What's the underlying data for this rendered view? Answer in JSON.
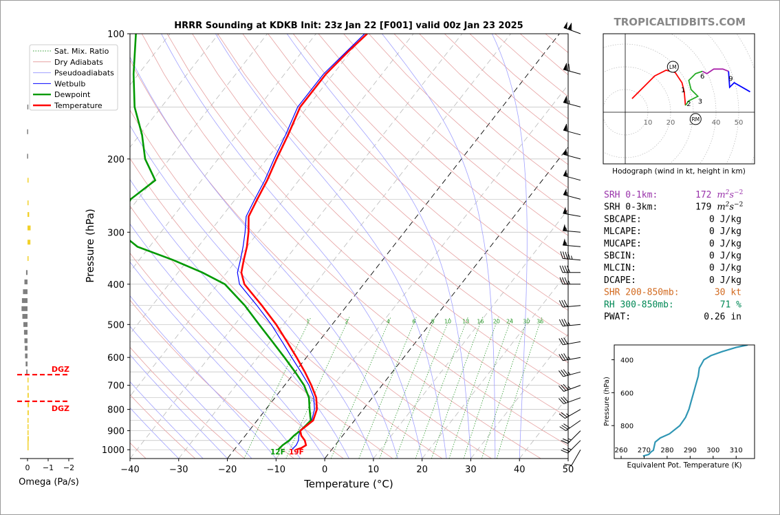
{
  "header": {
    "title": "HRRR Sounding at KDKB Init: 23z Jan 22 [F001] valid 00z Jan 23 2025",
    "brand": "TROPICALTIDBITS.COM"
  },
  "legend": {
    "items": [
      {
        "label": "Sat. Mix. Ratio",
        "color": "#2e9a2e",
        "style": "dotted"
      },
      {
        "label": "Dry Adiabats",
        "color": "#e6a0a0",
        "style": "solid"
      },
      {
        "label": "Pseudoadiabats",
        "color": "#a0a0ff",
        "style": "solid"
      },
      {
        "label": "Wetbulb",
        "color": "#0000ff",
        "style": "solid"
      },
      {
        "label": "Dewpoint",
        "color": "#009900",
        "style": "solid"
      },
      {
        "label": "Temperature",
        "color": "#ff0000",
        "style": "solid"
      }
    ]
  },
  "chart_data": [
    {
      "type": "line",
      "name": "skew-t",
      "xlabel": "Temperature (°C)",
      "ylabel": "Pressure (hPa)",
      "xlim": [
        -40,
        50
      ],
      "ylim": [
        1050,
        100
      ],
      "yscale": "log",
      "xticks": [
        -40,
        -30,
        -20,
        -10,
        0,
        10,
        20,
        30,
        40,
        50
      ],
      "yticks": [
        100,
        200,
        300,
        400,
        500,
        600,
        700,
        800,
        900,
        1000
      ],
      "mixing_ratio_labels": [
        "1",
        "2",
        "4",
        "6",
        "8",
        "10",
        "13",
        "16",
        "20",
        "24",
        "30",
        "36"
      ],
      "surface_labels": {
        "dewpoint": "12F",
        "temperature": "19F"
      },
      "temperature": {
        "p": [
          1000,
          990,
          975,
          950,
          925,
          900,
          875,
          850,
          800,
          750,
          700,
          650,
          600,
          550,
          500,
          450,
          400,
          375,
          350,
          325,
          300,
          275,
          250,
          225,
          200,
          175,
          150,
          125,
          110,
          100
        ],
        "t": [
          -7.3,
          -6.5,
          -6.0,
          -7.0,
          -8.5,
          -9.5,
          -9.0,
          -8.5,
          -9.5,
          -11.5,
          -14.5,
          -18.0,
          -22.0,
          -26.5,
          -31.5,
          -37.5,
          -44.5,
          -47.0,
          -48.5,
          -50.0,
          -52.0,
          -54.5,
          -55.5,
          -56.5,
          -58.0,
          -59.5,
          -61.5,
          -61.5,
          -60.5,
          -59.5
        ]
      },
      "dewpoint": {
        "p": [
          1000,
          975,
          950,
          925,
          900,
          875,
          850,
          800,
          750,
          700,
          650,
          600,
          550,
          500,
          450,
          400,
          375,
          350,
          325,
          300,
          275,
          250,
          225,
          200,
          175,
          150,
          125,
          100
        ],
        "td": [
          -11.0,
          -10.8,
          -10.2,
          -10.0,
          -9.5,
          -9.2,
          -9.0,
          -11.0,
          -13.0,
          -16.0,
          -20.0,
          -24.5,
          -29.5,
          -35.0,
          -41.0,
          -48.5,
          -55.0,
          -63.0,
          -72.5,
          -78.5,
          -80.5,
          -81.5,
          -79.5,
          -85.0,
          -89.5,
          -95.5,
          -101.0,
          -107.0
        ]
      },
      "wetbulb": {
        "p": [
          1000,
          975,
          950,
          925,
          900,
          875,
          850,
          800,
          750,
          700,
          650,
          600,
          550,
          500,
          450,
          400,
          375,
          350,
          325,
          300,
          275,
          250,
          225,
          200,
          175,
          150,
          125,
          100
        ],
        "tw": [
          -8.2,
          -8.0,
          -8.3,
          -9.0,
          -9.5,
          -9.1,
          -8.8,
          -10.0,
          -12.0,
          -15.0,
          -18.8,
          -23.0,
          -27.5,
          -32.5,
          -38.5,
          -45.5,
          -47.8,
          -49.2,
          -50.8,
          -52.7,
          -55.0,
          -56.0,
          -57.0,
          -58.5,
          -60.0,
          -62.0,
          -62.0,
          -60.0
        ]
      }
    },
    {
      "type": "scatter",
      "name": "hodograph",
      "xlabel": "Hodograph (wind in kt, height in km)",
      "ring_labels": [
        "10",
        "20",
        "30",
        "40",
        "50"
      ],
      "points": [
        {
          "u": 3,
          "v": 6,
          "seg": "0-3"
        },
        {
          "u": 8,
          "v": 11,
          "seg": "0-3"
        },
        {
          "u": 13,
          "v": 16,
          "seg": "0-3"
        },
        {
          "u": 18,
          "v": 18.5,
          "seg": "0-3"
        },
        {
          "u": 22,
          "v": 17.5,
          "seg": "0-3"
        },
        {
          "u": 25,
          "v": 13,
          "seg": "0-3"
        },
        {
          "u": 26,
          "v": 9,
          "seg": "0-3"
        },
        {
          "u": 26.5,
          "v": 3,
          "seg": "0-3"
        },
        {
          "u": 28,
          "v": 5,
          "seg": "3-6"
        },
        {
          "u": 32,
          "v": 7,
          "seg": "3-6"
        },
        {
          "u": 29,
          "v": 10,
          "seg": "3-6"
        },
        {
          "u": 28,
          "v": 14,
          "seg": "3-6"
        },
        {
          "u": 31,
          "v": 17,
          "seg": "3-6"
        },
        {
          "u": 34,
          "v": 18,
          "seg": "3-6"
        },
        {
          "u": 36,
          "v": 17,
          "seg": "6-9"
        },
        {
          "u": 39,
          "v": 19,
          "seg": "6-9"
        },
        {
          "u": 43,
          "v": 19,
          "seg": "6-9"
        },
        {
          "u": 45.5,
          "v": 18,
          "seg": "6-9"
        },
        {
          "u": 46,
          "v": 11,
          "seg": "9-12"
        },
        {
          "u": 48,
          "v": 13,
          "seg": "9-12"
        },
        {
          "u": 55,
          "v": 9,
          "seg": "9-12"
        }
      ],
      "seg_colors": {
        "0-3": "#ff0000",
        "3-6": "#22aa22",
        "6-9": "#aa22aa",
        "9-12": "#0000ff"
      },
      "height_labels": [
        {
          "text": "1",
          "u": 25.5,
          "v": 10
        },
        {
          "text": "2",
          "u": 28,
          "v": 4
        },
        {
          "text": "3",
          "u": 33,
          "v": 5
        },
        {
          "text": "6",
          "u": 34,
          "v": 16
        },
        {
          "text": "9",
          "u": 46.5,
          "v": 15
        }
      ],
      "storm_motion": [
        {
          "label": "LM",
          "u": 21,
          "v": 20
        },
        {
          "label": "RM",
          "u": 31,
          "v": -3
        }
      ]
    },
    {
      "type": "line",
      "name": "theta-e",
      "ylabel": "Pressure (hPa)",
      "xlabel": "Equivalent Pot. Temperature (K)",
      "xlim": [
        257,
        318
      ],
      "ylim": [
        1000,
        310
      ],
      "xticks": [
        "260",
        "270",
        "280",
        "290",
        "300",
        "310"
      ],
      "yticks": [
        "400",
        "600",
        "800"
      ],
      "theta_e": {
        "p": [
          985,
          975,
          960,
          950,
          900,
          875,
          850,
          800,
          750,
          700,
          650,
          600,
          550,
          500,
          450,
          425,
          400,
          375,
          350,
          325,
          310
        ],
        "k": [
          269.5,
          272.0,
          273.0,
          274.0,
          274.8,
          277.0,
          281.0,
          285.5,
          288.0,
          289.5,
          290.5,
          291.5,
          292.5,
          293.5,
          294.0,
          295.0,
          296.0,
          299.0,
          304.0,
          310.0,
          315.0
        ]
      }
    },
    {
      "type": "bar",
      "name": "omega",
      "xlabel": "Omega (Pa/s)",
      "xticks": [
        "0",
        "−1",
        "−2"
      ],
      "xlim": [
        0.3,
        -2.0
      ],
      "levels": [
        {
          "p": 150,
          "omega": 0.01
        },
        {
          "p": 172,
          "omega": 0.02
        },
        {
          "p": 197,
          "omega": 0.02
        },
        {
          "p": 225,
          "omega": -0.02
        },
        {
          "p": 255,
          "omega": -0.05
        },
        {
          "p": 272,
          "omega": -0.08
        },
        {
          "p": 293,
          "omega": -0.15
        },
        {
          "p": 317,
          "omega": -0.14
        },
        {
          "p": 347,
          "omega": -0.04
        },
        {
          "p": 375,
          "omega": 0.07
        },
        {
          "p": 395,
          "omega": 0.15
        },
        {
          "p": 417,
          "omega": 0.22
        },
        {
          "p": 438,
          "omega": 0.27
        },
        {
          "p": 458,
          "omega": 0.29
        },
        {
          "p": 478,
          "omega": 0.25
        },
        {
          "p": 500,
          "omega": 0.2
        },
        {
          "p": 522,
          "omega": 0.17
        },
        {
          "p": 547,
          "omega": 0.15
        },
        {
          "p": 570,
          "omega": 0.13
        },
        {
          "p": 595,
          "omega": 0.12
        },
        {
          "p": 622,
          "omega": 0.09
        },
        {
          "p": 650,
          "omega": 0.06
        },
        {
          "p": 680,
          "omega": -0.02
        },
        {
          "p": 710,
          "omega": -0.04
        },
        {
          "p": 740,
          "omega": -0.06
        },
        {
          "p": 780,
          "omega": -0.07
        },
        {
          "p": 815,
          "omega": -0.06
        },
        {
          "p": 850,
          "omega": -0.05
        },
        {
          "p": 880,
          "omega": -0.05
        },
        {
          "p": 910,
          "omega": -0.04
        },
        {
          "p": 940,
          "omega": -0.06
        },
        {
          "p": 965,
          "omega": -0.05
        },
        {
          "p": 990,
          "omega": -0.03
        }
      ],
      "dgz": [
        {
          "label": "DGZ",
          "p": 660
        },
        {
          "label": "DGZ",
          "p": 765
        }
      ]
    }
  ],
  "winds": [
    {
      "p": 100,
      "spd": 110,
      "dir": 290
    },
    {
      "p": 125,
      "spd": 70,
      "dir": 285
    },
    {
      "p": 150,
      "spd": 65,
      "dir": 285
    },
    {
      "p": 175,
      "spd": 60,
      "dir": 285
    },
    {
      "p": 200,
      "spd": 55,
      "dir": 285
    },
    {
      "p": 225,
      "spd": 55,
      "dir": 285
    },
    {
      "p": 250,
      "spd": 55,
      "dir": 285
    },
    {
      "p": 275,
      "spd": 55,
      "dir": 280
    },
    {
      "p": 300,
      "spd": 55,
      "dir": 275
    },
    {
      "p": 325,
      "spd": 55,
      "dir": 275
    },
    {
      "p": 350,
      "spd": 45,
      "dir": 275
    },
    {
      "p": 375,
      "spd": 40,
      "dir": 270
    },
    {
      "p": 400,
      "spd": 35,
      "dir": 270
    },
    {
      "p": 450,
      "spd": 30,
      "dir": 265
    },
    {
      "p": 500,
      "spd": 35,
      "dir": 265
    },
    {
      "p": 550,
      "spd": 30,
      "dir": 260
    },
    {
      "p": 600,
      "spd": 35,
      "dir": 260
    },
    {
      "p": 650,
      "spd": 35,
      "dir": 255
    },
    {
      "p": 700,
      "spd": 35,
      "dir": 250
    },
    {
      "p": 750,
      "spd": 30,
      "dir": 250
    },
    {
      "p": 800,
      "spd": 25,
      "dir": 240
    },
    {
      "p": 850,
      "spd": 30,
      "dir": 235
    },
    {
      "p": 900,
      "spd": 25,
      "dir": 225
    },
    {
      "p": 950,
      "spd": 25,
      "dir": 225
    },
    {
      "p": 1000,
      "spd": 10,
      "dir": 210
    }
  ],
  "stats": [
    {
      "label": "SRH 0-1km:",
      "value": "172",
      "unit": "m2s-2",
      "color": "#9933aa"
    },
    {
      "label": "SRH 0-3km:",
      "value": "179",
      "unit": "m2s-2",
      "color": "#000000"
    },
    {
      "label": "SBCAPE:",
      "value": "0 J/kg",
      "color": "#000000"
    },
    {
      "label": "MLCAPE:",
      "value": "0 J/kg",
      "color": "#000000"
    },
    {
      "label": "MUCAPE:",
      "value": "0 J/kg",
      "color": "#000000"
    },
    {
      "label": "SBCIN:",
      "value": "0 J/kg",
      "color": "#000000"
    },
    {
      "label": "MLCIN:",
      "value": "0 J/kg",
      "color": "#000000"
    },
    {
      "label": "DCAPE:",
      "value": "0 J/kg",
      "color": "#000000"
    },
    {
      "label": "SHR 200-850mb:",
      "value": "30 kt",
      "color": "#d2691e"
    },
    {
      "label": "RH 300-850mb:",
      "value": "71 %",
      "color": "#008855"
    },
    {
      "label": "PWAT:",
      "value": "0.26 in",
      "color": "#000000"
    }
  ]
}
